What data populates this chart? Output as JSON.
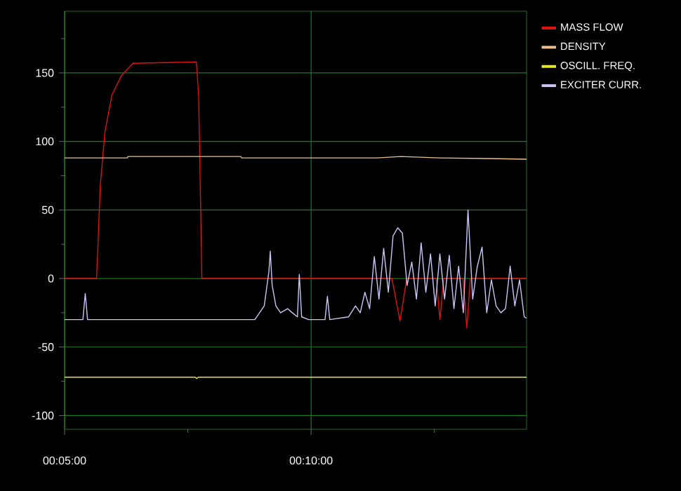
{
  "chart_data": {
    "type": "line",
    "xlim": [
      0.083333,
      0.2395
    ],
    "ylim": [
      -110,
      195
    ],
    "xticks": [
      {
        "value": 0.083333,
        "label": "00:05:00"
      },
      {
        "value": 0.125,
        "label": null
      },
      {
        "value": 0.166667,
        "label": "00:10:00"
      },
      {
        "value": 0.208333,
        "label": null
      }
    ],
    "yticks": [
      -100,
      {
        "value": -75,
        "label": null
      },
      -50,
      {
        "value": -25,
        "label": null
      },
      0,
      {
        "value": 25,
        "label": null
      },
      50,
      {
        "value": 75,
        "label": null
      },
      100,
      {
        "value": 125,
        "label": null
      },
      150,
      {
        "value": 175,
        "label": null
      }
    ],
    "grid": true,
    "legend": "top right",
    "marker": "none",
    "line_style": "solid",
    "series": [
      {
        "name": "MASS FLOW",
        "color": "#e01010",
        "x": [
          0.083333,
          0.09412,
          0.0946,
          0.09538,
          0.09697,
          0.09935,
          0.10252,
          0.10647,
          0.12785,
          0.12865,
          0.12975,
          0.194,
          0.1967,
          0.199,
          0.209,
          0.2102,
          0.2115,
          0.218,
          0.2193,
          0.2205,
          0.2395
        ],
        "values": [
          0,
          0,
          23,
          67,
          107,
          134,
          148,
          157,
          158,
          134,
          0,
          0,
          -31,
          0,
          0,
          -30,
          0,
          0,
          -36,
          0,
          0
        ]
      },
      {
        "name": "DENSITY",
        "color": "#e8c090",
        "x": [
          0.083333,
          0.1045,
          0.1048,
          0.1429,
          0.1432,
          0.189,
          0.197,
          0.21,
          0.226,
          0.2395
        ],
        "values": [
          88,
          88,
          89,
          89,
          88,
          88,
          89,
          88,
          87.5,
          87
        ]
      },
      {
        "name": "OSCILL. FREQ.",
        "color": "#e8e820",
        "x": [
          0.083333,
          0.1275,
          0.128,
          0.1285,
          0.2395
        ],
        "values": [
          -72,
          -72,
          -73,
          -72,
          -72
        ]
      },
      {
        "name": "EXCITER CURR.",
        "color": "#c8c8f8",
        "x": [
          0.083333,
          0.08953,
          0.09032,
          0.0911,
          0.14765,
          0.15082,
          0.1524,
          0.15287,
          0.1535,
          0.15477,
          0.15635,
          0.15872,
          0.1603,
          0.16205,
          0.16268,
          0.16347,
          0.16583,
          0.17138,
          0.17218,
          0.17297,
          0.1793,
          0.18168,
          0.18328,
          0.18486,
          0.18645,
          0.18803,
          0.18961,
          0.1912,
          0.19278,
          0.19437,
          0.19595,
          0.19753,
          0.19912,
          0.2007,
          0.20228,
          0.20387,
          0.20545,
          0.20704,
          0.20862,
          0.2102,
          0.21179,
          0.21337,
          0.21495,
          0.21654,
          0.21812,
          0.21971,
          0.22129,
          0.22287,
          0.22446,
          0.22604,
          0.22762,
          0.22921,
          0.23079,
          0.23238,
          0.23396,
          0.23554,
          0.23713,
          0.23871,
          0.2395
        ],
        "values": [
          -30,
          -30,
          -11,
          -30,
          -30,
          -20,
          5,
          20,
          -5,
          -20,
          -25,
          -22,
          -25,
          -28,
          3,
          -28,
          -30,
          -30,
          -13,
          -30,
          -28,
          -20,
          -25,
          -10,
          -22,
          16,
          -15,
          22,
          -10,
          31,
          37,
          33,
          -5,
          12,
          -15,
          26,
          -10,
          18,
          -20,
          18,
          -15,
          17,
          -22,
          9,
          -25,
          50,
          -15,
          9,
          23,
          -25,
          -1,
          -20,
          -25,
          -22,
          9,
          -20,
          -1,
          -28,
          -29
        ]
      }
    ]
  }
}
